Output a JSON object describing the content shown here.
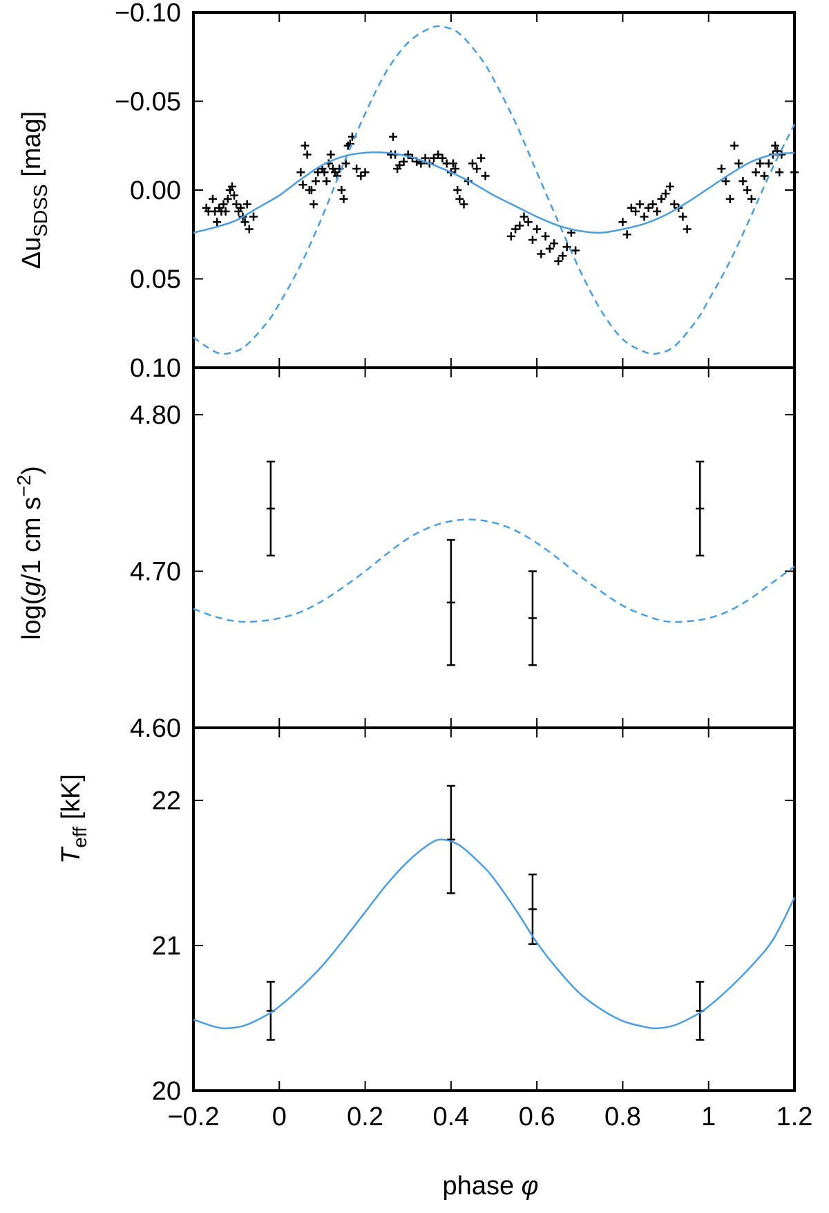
{
  "chart_data": [
    {
      "id": "top",
      "type": "scatter",
      "ylabel": {
        "prefix": "Δu",
        "sub": "SDSS",
        "suffix": " [mag]"
      },
      "xlim": [
        -0.2,
        1.2
      ],
      "ylim": [
        0.1,
        -0.1
      ],
      "y_inverted": true,
      "yticks": [
        -0.1,
        -0.05,
        0.0,
        0.05,
        0.1
      ],
      "ytick_labels": [
        "−0.10",
        "−0.05",
        "0.00",
        "0.05",
        "0.10"
      ],
      "series": [
        {
          "name": "observed",
          "kind": "plus-markers",
          "color": "#000000",
          "x": [
            -0.17,
            -0.165,
            -0.155,
            -0.15,
            -0.145,
            -0.14,
            -0.135,
            -0.13,
            -0.125,
            -0.12,
            -0.115,
            -0.11,
            -0.105,
            -0.1,
            -0.095,
            -0.09,
            -0.085,
            -0.08,
            -0.075,
            -0.07,
            -0.06,
            0.05,
            0.055,
            0.06,
            0.065,
            0.07,
            0.075,
            0.08,
            0.085,
            0.09,
            0.1,
            0.105,
            0.11,
            0.115,
            0.12,
            0.125,
            0.13,
            0.135,
            0.14,
            0.145,
            0.15,
            0.155,
            0.16,
            0.165,
            0.17,
            0.18,
            0.19,
            0.2,
            0.26,
            0.265,
            0.27,
            0.275,
            0.28,
            0.29,
            0.3,
            0.31,
            0.32,
            0.33,
            0.34,
            0.35,
            0.36,
            0.37,
            0.38,
            0.39,
            0.4,
            0.405,
            0.41,
            0.415,
            0.42,
            0.43,
            0.44,
            0.45,
            0.46,
            0.47,
            0.48,
            0.54,
            0.55,
            0.56,
            0.57,
            0.58,
            0.59,
            0.6,
            0.61,
            0.62,
            0.63,
            0.64,
            0.65,
            0.66,
            0.67,
            0.68,
            0.69,
            0.8,
            0.81,
            0.82,
            0.83,
            0.84,
            0.85,
            0.86,
            0.87,
            0.88,
            0.89,
            0.9,
            0.91,
            0.92,
            0.93,
            0.94,
            0.95,
            1.03,
            1.04,
            1.05,
            1.06,
            1.07,
            1.08,
            1.09,
            1.1,
            1.11,
            1.12,
            1.13,
            1.14,
            1.15,
            1.155,
            1.16,
            1.165,
            1.17,
            1.2
          ],
          "y": [
            0.01,
            0.012,
            0.005,
            0.012,
            0.018,
            0.01,
            0.012,
            0.008,
            0.012,
            0.005,
            0.0,
            -0.002,
            0.003,
            0.008,
            0.012,
            0.01,
            0.015,
            0.018,
            0.008,
            0.022,
            0.015,
            -0.01,
            -0.003,
            -0.025,
            -0.02,
            0.0,
            0.0,
            0.008,
            -0.005,
            -0.01,
            -0.012,
            -0.01,
            -0.005,
            -0.015,
            -0.02,
            -0.012,
            -0.01,
            -0.008,
            -0.012,
            0.0,
            0.005,
            -0.015,
            -0.025,
            -0.026,
            -0.03,
            -0.012,
            -0.008,
            -0.01,
            -0.02,
            -0.03,
            -0.02,
            -0.012,
            -0.014,
            -0.016,
            -0.02,
            -0.018,
            -0.016,
            -0.015,
            -0.018,
            -0.015,
            -0.018,
            -0.02,
            -0.018,
            -0.015,
            -0.01,
            -0.015,
            -0.012,
            0.0,
            0.005,
            0.008,
            -0.005,
            -0.015,
            -0.012,
            -0.018,
            -0.008,
            0.026,
            0.022,
            0.02,
            0.015,
            0.018,
            0.028,
            0.022,
            0.036,
            0.026,
            0.033,
            0.03,
            0.04,
            0.037,
            0.032,
            0.024,
            0.034,
            0.018,
            0.025,
            0.01,
            0.012,
            0.008,
            0.015,
            0.01,
            0.008,
            0.012,
            0.005,
            0.002,
            -0.002,
            0.008,
            0.01,
            0.015,
            0.022,
            -0.012,
            -0.005,
            0.005,
            -0.025,
            -0.015,
            -0.005,
            0.0,
            0.005,
            -0.01,
            -0.015,
            -0.008,
            -0.015,
            -0.02,
            -0.025,
            -0.022,
            -0.01,
            -0.02,
            -0.01
          ]
        },
        {
          "name": "model fit",
          "kind": "solid-line",
          "color": "#4a9de0",
          "x": [
            -0.2,
            -0.15,
            -0.1,
            -0.05,
            0.0,
            0.05,
            0.1,
            0.15,
            0.2,
            0.25,
            0.3,
            0.35,
            0.4,
            0.45,
            0.5,
            0.55,
            0.6,
            0.65,
            0.7,
            0.75,
            0.8,
            0.85,
            0.9,
            0.95,
            1.0,
            1.05,
            1.1,
            1.15,
            1.2
          ],
          "y": [
            0.024,
            0.021,
            0.017,
            0.01,
            0.003,
            -0.006,
            -0.014,
            -0.019,
            -0.021,
            -0.021,
            -0.019,
            -0.015,
            -0.01,
            -0.004,
            0.003,
            0.009,
            0.015,
            0.02,
            0.023,
            0.024,
            0.022,
            0.019,
            0.014,
            0.007,
            -0.001,
            -0.009,
            -0.016,
            -0.02,
            -0.021
          ]
        },
        {
          "name": "prediction",
          "kind": "dashed-line",
          "color": "#4a9de0",
          "x": [
            -0.2,
            -0.15,
            -0.12,
            -0.08,
            -0.03,
            0.0,
            0.05,
            0.1,
            0.15,
            0.2,
            0.25,
            0.3,
            0.35,
            0.38,
            0.42,
            0.47,
            0.5,
            0.55,
            0.6,
            0.65,
            0.7,
            0.75,
            0.8,
            0.85,
            0.88,
            0.92,
            0.97,
            1.0,
            1.05,
            1.1,
            1.15,
            1.2
          ],
          "y": [
            0.083,
            0.091,
            0.092,
            0.088,
            0.075,
            0.064,
            0.042,
            0.015,
            -0.015,
            -0.043,
            -0.067,
            -0.083,
            -0.091,
            -0.092,
            -0.088,
            -0.074,
            -0.062,
            -0.038,
            -0.01,
            0.018,
            0.045,
            0.068,
            0.084,
            0.091,
            0.092,
            0.088,
            0.074,
            0.062,
            0.04,
            0.014,
            -0.013,
            -0.037
          ]
        }
      ]
    },
    {
      "id": "middle",
      "type": "scatter",
      "ylabel": {
        "prefix": "log(",
        "ital": "g",
        "mid": "/1 cm s",
        "sup": "−2",
        "suffix": ")"
      },
      "xlim": [
        -0.2,
        1.2
      ],
      "ylim": [
        4.6,
        4.83
      ],
      "yticks": [
        4.6,
        4.7,
        4.8
      ],
      "ytick_labels": [
        "4.60",
        "4.70",
        "4.80"
      ],
      "series": [
        {
          "name": "measurements",
          "kind": "errorbars",
          "color": "#000000",
          "x": [
            -0.02,
            0.4,
            0.59,
            0.98
          ],
          "y": [
            4.74,
            4.68,
            4.67,
            4.74
          ],
          "err": [
            0.03,
            0.04,
            0.03,
            0.03
          ]
        },
        {
          "name": "prediction",
          "kind": "dashed-line",
          "color": "#4a9de0",
          "x": [
            -0.2,
            -0.15,
            -0.1,
            -0.05,
            0.0,
            0.05,
            0.1,
            0.15,
            0.2,
            0.25,
            0.3,
            0.35,
            0.4,
            0.45,
            0.5,
            0.55,
            0.6,
            0.65,
            0.7,
            0.75,
            0.8,
            0.85,
            0.9,
            0.95,
            1.0,
            1.05,
            1.1,
            1.15,
            1.2
          ],
          "y": [
            4.676,
            4.671,
            4.668,
            4.668,
            4.67,
            4.674,
            4.681,
            4.69,
            4.7,
            4.711,
            4.721,
            4.728,
            4.732,
            4.733,
            4.731,
            4.726,
            4.718,
            4.708,
            4.697,
            4.687,
            4.678,
            4.672,
            4.668,
            4.668,
            4.67,
            4.675,
            4.683,
            4.693,
            4.703
          ]
        }
      ]
    },
    {
      "id": "bottom",
      "type": "scatter",
      "ylabel": {
        "ital": "T",
        "sub": "eff",
        "suffix": " [kK]"
      },
      "xlabel": {
        "prefix": "phase ",
        "ital": "φ"
      },
      "xlim": [
        -0.2,
        1.2
      ],
      "ylim": [
        20.0,
        22.5
      ],
      "yticks": [
        20,
        21,
        22
      ],
      "ytick_labels": [
        "20",
        "21",
        "22"
      ],
      "xticks": [
        -0.2,
        0,
        0.2,
        0.4,
        0.6,
        0.8,
        1,
        1.2
      ],
      "xtick_labels": [
        "−0.2",
        "0",
        "0.2",
        "0.4",
        "0.6",
        "0.8",
        "1",
        "1.2"
      ],
      "series": [
        {
          "name": "measurements",
          "kind": "errorbars",
          "color": "#000000",
          "x": [
            -0.02,
            0.4,
            0.59,
            0.98
          ],
          "y": [
            20.55,
            21.73,
            21.25,
            20.55
          ],
          "err": [
            0.2,
            0.37,
            0.24,
            0.2
          ]
        },
        {
          "name": "model fit",
          "kind": "solid-line",
          "color": "#4a9de0",
          "x": [
            -0.2,
            -0.15,
            -0.12,
            -0.08,
            -0.03,
            0.0,
            0.05,
            0.1,
            0.15,
            0.2,
            0.25,
            0.3,
            0.35,
            0.38,
            0.42,
            0.47,
            0.5,
            0.55,
            0.6,
            0.65,
            0.7,
            0.75,
            0.8,
            0.85,
            0.88,
            0.92,
            0.97,
            1.0,
            1.05,
            1.1,
            1.15,
            1.2
          ],
          "y": [
            20.49,
            20.44,
            20.43,
            20.45,
            20.52,
            20.58,
            20.71,
            20.86,
            21.04,
            21.23,
            21.42,
            21.58,
            21.7,
            21.73,
            21.69,
            21.56,
            21.46,
            21.25,
            21.02,
            20.83,
            20.67,
            20.56,
            20.48,
            20.44,
            20.43,
            20.45,
            20.52,
            20.58,
            20.71,
            20.86,
            21.04,
            21.33
          ]
        }
      ]
    }
  ]
}
